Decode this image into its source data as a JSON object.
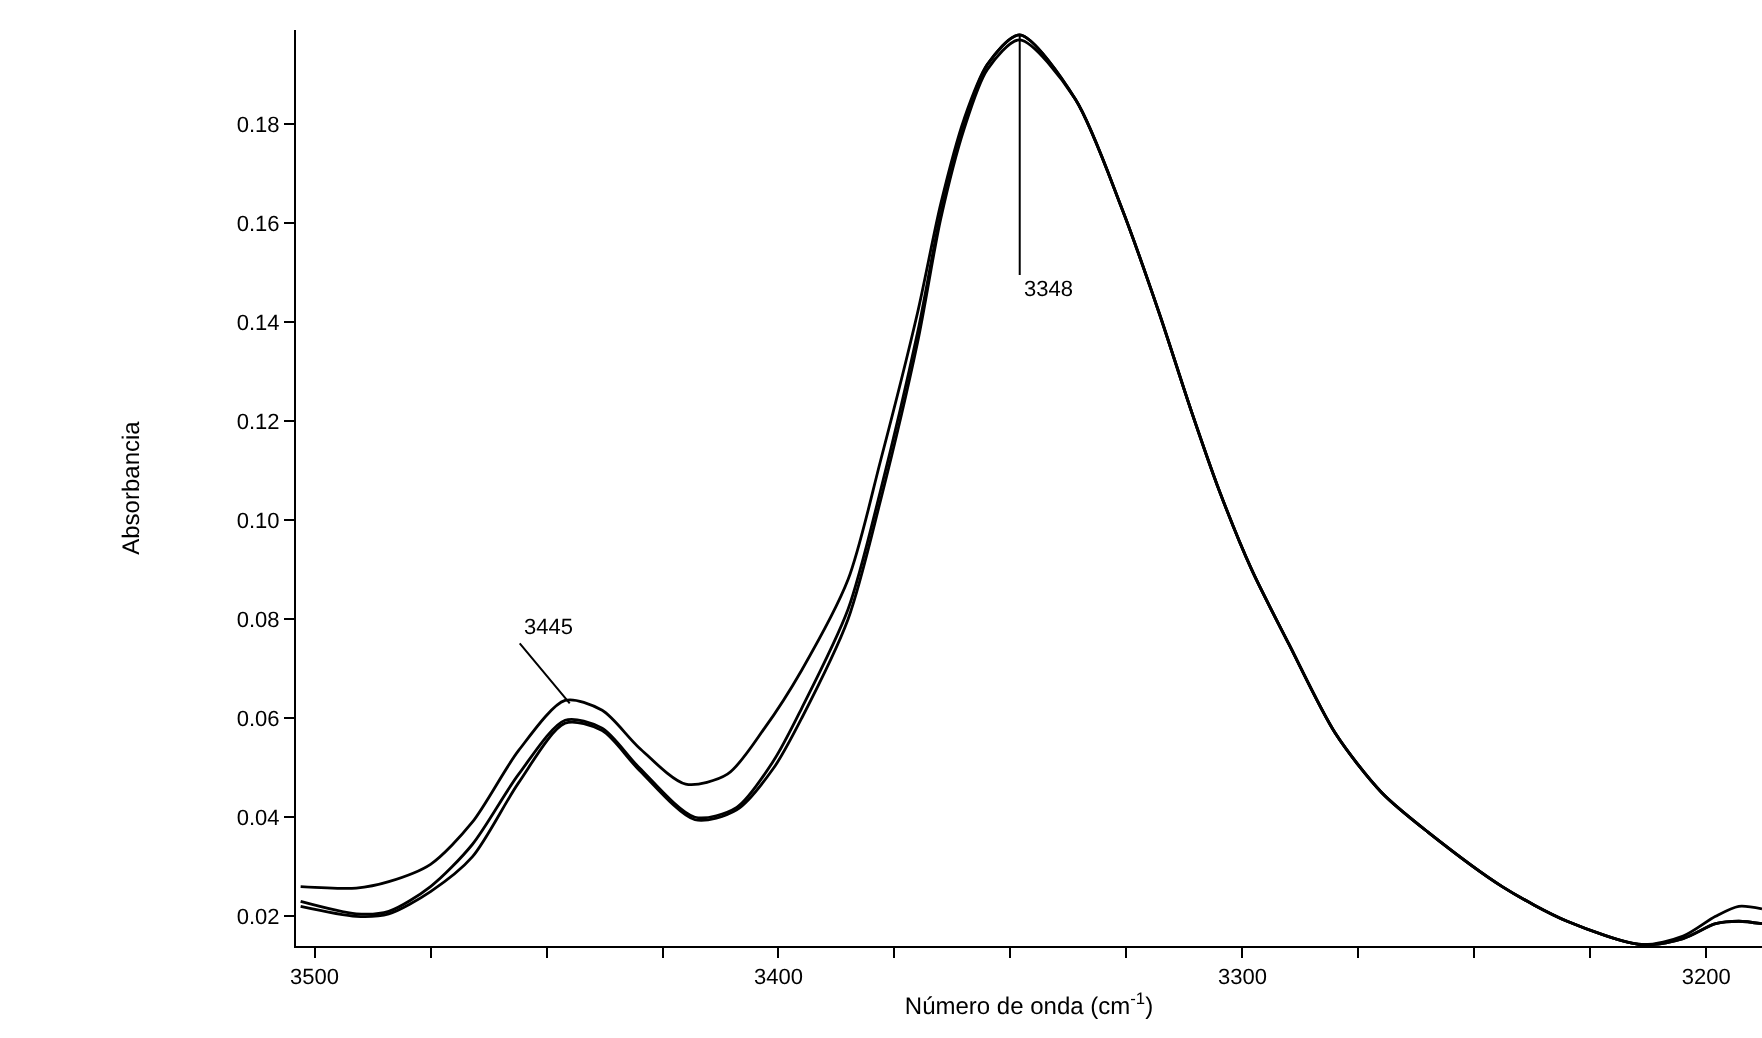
{
  "chart_data": {
    "type": "line",
    "xlabel": "Número de onda (cm$^{-1}$)",
    "ylabel": "Absorbancia",
    "xlim": [
      3504,
      3188
    ],
    "ylim": [
      0.014,
      0.199
    ],
    "xticks": [
      3500,
      {
        "value": 3475,
        "label": null
      },
      {
        "value": 3450,
        "label": null
      },
      {
        "value": 3425,
        "label": null
      },
      3400,
      {
        "value": 3375,
        "label": null
      },
      {
        "value": 3350,
        "label": null
      },
      {
        "value": 3325,
        "label": null
      },
      3300,
      {
        "value": 3275,
        "label": null
      },
      {
        "value": 3250,
        "label": null
      },
      {
        "value": 3225,
        "label": null
      },
      3200
    ],
    "yticks": [
      0.02,
      0.04,
      0.06,
      0.08,
      {
        "value": 0.1,
        "label": "0.10"
      },
      0.12,
      0.14,
      0.16,
      0.18
    ],
    "marker": "none",
    "line_style": "solid",
    "series": [
      {
        "color": "#000000",
        "x": [
          3503,
          3491,
          3484,
          3475,
          3466,
          3456,
          3446,
          3438,
          3430,
          3420,
          3411,
          3403,
          3395,
          3385,
          3378,
          3370,
          3365,
          3360,
          3355,
          3348,
          3336,
          3326,
          3318,
          3311,
          3305,
          3298,
          3290,
          3280,
          3270,
          3260,
          3244,
          3230,
          3214,
          3205,
          3198,
          3193,
          3188
        ],
        "values": [
          0.026,
          0.0257,
          0.027,
          0.0305,
          0.039,
          0.0535,
          0.0636,
          0.0616,
          0.054,
          0.0467,
          0.0487,
          0.058,
          0.0697,
          0.088,
          0.112,
          0.142,
          0.164,
          0.181,
          0.192,
          0.198,
          0.185,
          0.163,
          0.142,
          0.122,
          0.106,
          0.09,
          0.075,
          0.057,
          0.045,
          0.037,
          0.026,
          0.019,
          0.0143,
          0.0155,
          0.0185,
          0.019,
          0.0185
        ]
      },
      {
        "color": "#000000",
        "x": [
          3503,
          3491,
          3484,
          3475,
          3466,
          3456,
          3446,
          3438,
          3430,
          3418,
          3409,
          3401,
          3395,
          3385,
          3378,
          3370,
          3365,
          3360,
          3355,
          3348,
          3336,
          3326,
          3318,
          3311,
          3305,
          3298,
          3290,
          3280,
          3270,
          3260,
          3244,
          3230,
          3214,
          3205,
          3198,
          3193,
          3188
        ],
        "values": [
          0.023,
          0.0205,
          0.021,
          0.026,
          0.0345,
          0.0487,
          0.0596,
          0.058,
          0.05,
          0.04,
          0.042,
          0.0515,
          0.062,
          0.082,
          0.106,
          0.138,
          0.162,
          0.18,
          0.192,
          0.198,
          0.185,
          0.163,
          0.142,
          0.122,
          0.106,
          0.09,
          0.075,
          0.057,
          0.045,
          0.037,
          0.026,
          0.019,
          0.0143,
          0.016,
          0.02,
          0.022,
          0.0215
        ]
      },
      {
        "color": "#000000",
        "x": [
          3503,
          3491,
          3484,
          3475,
          3466,
          3456,
          3446,
          3438,
          3430,
          3418,
          3409,
          3401,
          3395,
          3385,
          3378,
          3370,
          3365,
          3360,
          3355,
          3348,
          3336,
          3326,
          3318,
          3311,
          3305,
          3298,
          3290,
          3280,
          3270,
          3260,
          3244,
          3230,
          3214,
          3205,
          3198,
          3193,
          3188
        ],
        "values": [
          0.022,
          0.02,
          0.0205,
          0.025,
          0.032,
          0.047,
          0.059,
          0.0575,
          0.0495,
          0.0395,
          0.0415,
          0.05,
          0.06,
          0.08,
          0.104,
          0.136,
          0.161,
          0.179,
          0.191,
          0.197,
          0.185,
          0.163,
          0.142,
          0.122,
          0.106,
          0.09,
          0.075,
          0.057,
          0.045,
          0.037,
          0.026,
          0.019,
          0.0143,
          0.0155,
          0.0185,
          0.019,
          0.0185
        ]
      }
    ],
    "annotations": [
      {
        "text": "3445",
        "x": 3445,
        "y": 0.063
      },
      {
        "text": "3348",
        "x": 3348,
        "y": 0.198
      }
    ]
  }
}
